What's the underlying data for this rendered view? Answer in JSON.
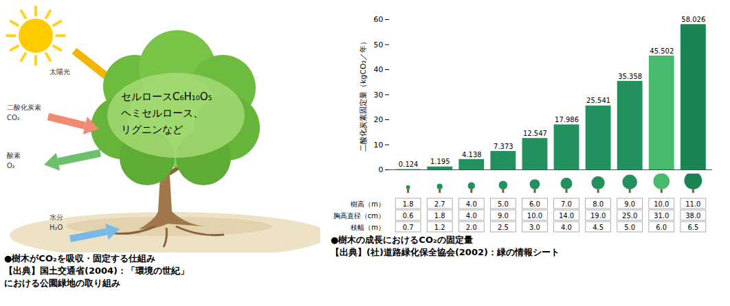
{
  "diagram": {
    "sunlight": "太陽光",
    "co2": [
      "二酸化炭素",
      "CO₂"
    ],
    "o2": [
      "酸素",
      "O₂"
    ],
    "water": [
      "水分",
      "H₂O"
    ],
    "canopy_text": [
      "セルロースC₆H₁₀O₅",
      "ヘミセルロース、",
      "リグニンなど"
    ],
    "caption": [
      "●樹木がCO₂を吸収・固定する仕組み",
      "【出典】国土交通省(2004)：「環境の世紀」",
      "における公園緑地の取り組み"
    ]
  },
  "chart_data": {
    "type": "bar",
    "y_label": "二酸化炭素固定量（kgCO₂／年）",
    "categories": [
      null,
      null,
      null,
      null,
      null,
      null,
      null,
      null,
      null,
      null
    ],
    "values": [
      0.124,
      1.195,
      4.138,
      7.373,
      12.547,
      17.986,
      25.541,
      35.358,
      45.502,
      58.026
    ],
    "colors": [
      "#22915e",
      "#22915e",
      "#22915e",
      "#22915e",
      "#22915e",
      "#22915e",
      "#22915e",
      "#22915e",
      "#49b96d",
      "#1a8553"
    ],
    "ylim": [
      0,
      60
    ],
    "yticks": [
      0,
      10,
      20,
      30,
      40,
      50,
      60
    ],
    "grid": false,
    "data_labels": true,
    "tick_labels": "y",
    "caption": [
      "●樹木の成長におけるCO₂の固定量",
      "【出典】(社)道路緑化保全協会(2002)：緑の情報シート"
    ]
  },
  "size_table": {
    "rows": [
      {
        "label": "樹高（m）",
        "values": [
          "1.8",
          "2.7",
          "4.0",
          "5.0",
          "6.0",
          "7.0",
          "8.0",
          "9.0",
          "10.0",
          "11.0"
        ]
      },
      {
        "label": "胸高直径（cm）",
        "values": [
          "0.6",
          "1.8",
          "4.0",
          "9.0",
          "10.0",
          "14.0",
          "19.0",
          "25.0",
          "31.0",
          "38.0"
        ]
      },
      {
        "label": "枝幅（m）",
        "values": [
          "0.7",
          "1.2",
          "2.0",
          "2.5",
          "3.0",
          "4.0",
          "4.5",
          "5.0",
          "6.0",
          "6.5"
        ]
      }
    ]
  }
}
